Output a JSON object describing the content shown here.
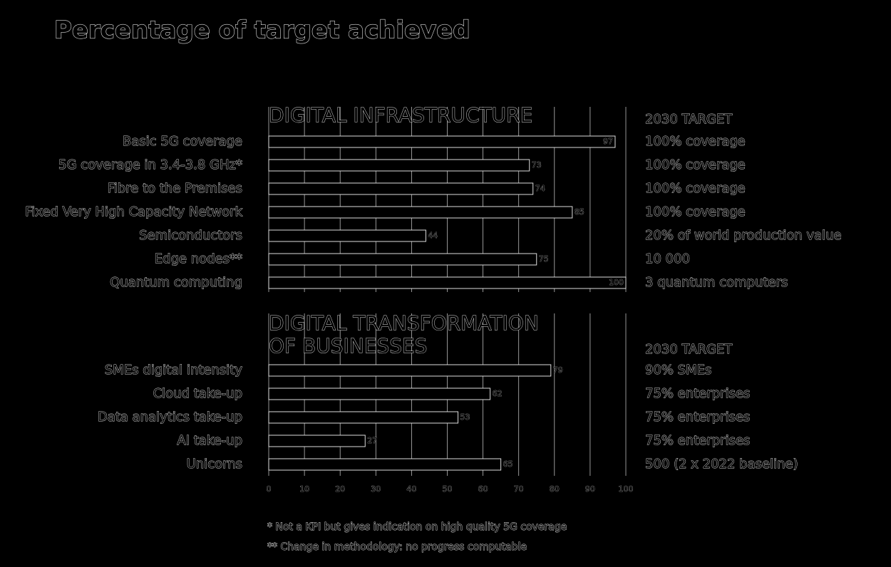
{
  "title": "Percentage of target achieved",
  "chart_data": [
    {
      "type": "bar",
      "orientation": "horizontal",
      "title_lines": [
        "DIGITAL INFRASTRUCTURE"
      ],
      "target_header": "2030 TARGET",
      "categories": [
        "Basic 5G coverage",
        "5G coverage in 3.4-3.8 GHz*",
        "Fibre to the Premises",
        "Fixed Very High Capacity Network",
        "Semiconductors",
        "Edge nodes**",
        "Quantum computing"
      ],
      "values": [
        97,
        73,
        74,
        85,
        44,
        75,
        100
      ],
      "targets": [
        "100% coverage",
        "100% coverage",
        "100% coverage",
        "100% coverage",
        "20% of world production value",
        "10 000",
        "3 quantum computers"
      ],
      "xlim": [
        0,
        100
      ],
      "xticks": [
        0,
        10,
        20,
        30,
        40,
        50,
        60,
        70,
        80,
        90,
        100
      ],
      "color": "#000000",
      "grid": true
    },
    {
      "type": "bar",
      "orientation": "horizontal",
      "title_lines": [
        "DIGITAL TRANSFORMATION",
        "OF BUSINESSES"
      ],
      "target_header": "2030 TARGET",
      "categories": [
        "SMEs digital intensity",
        "Cloud take-up",
        "Data analytics take-up",
        "AI take-up",
        "Unicorns"
      ],
      "values": [
        79,
        62,
        53,
        27,
        65
      ],
      "targets": [
        "90% SMEs",
        "75% enterprises",
        "75% enterprises",
        "75% enterprises",
        "500 (2 x 2022 baseline)"
      ],
      "xlim": [
        0,
        100
      ],
      "xticks": [
        0,
        10,
        20,
        30,
        40,
        50,
        60,
        70,
        80,
        90,
        100
      ],
      "color": "#000000",
      "grid": true
    }
  ],
  "footnotes": [
    "* Not a KPI but gives indication on high quality 5G coverage",
    "** Change in methodology: no progress computable"
  ]
}
